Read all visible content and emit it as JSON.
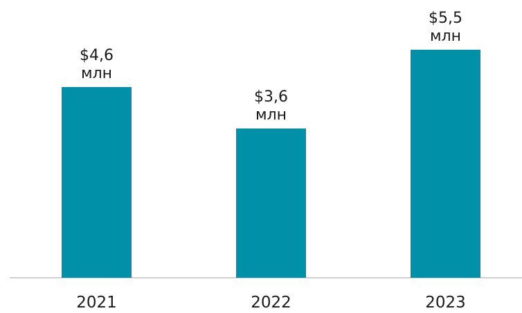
{
  "chart_data": {
    "type": "bar",
    "categories": [
      "2021",
      "2022",
      "2023"
    ],
    "values": [
      4.6,
      3.6,
      5.5
    ],
    "value_labels": [
      "$4,6 млн",
      "$3,6 млн",
      "$5,5 млн"
    ],
    "color": "#0090a8"
  }
}
